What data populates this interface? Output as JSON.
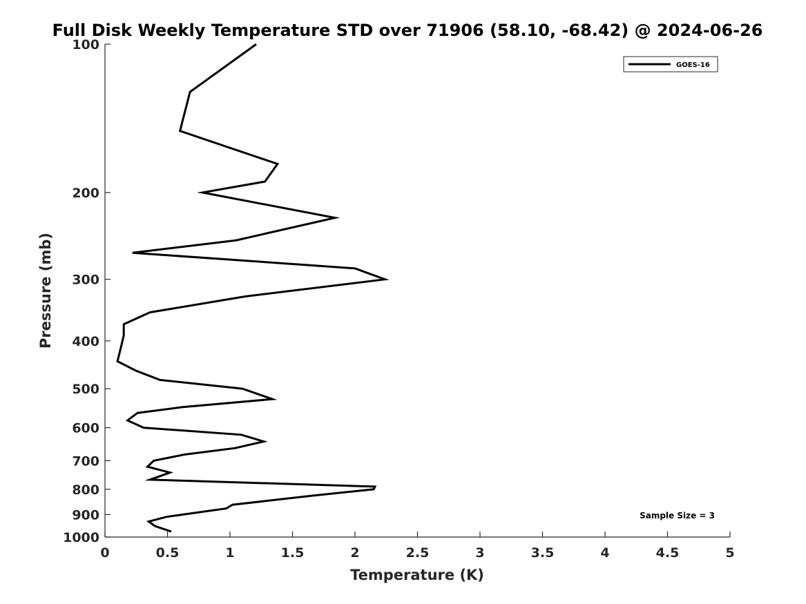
{
  "chart_data": {
    "type": "line",
    "title": "Full Disk Weekly Temperature STD over 71906 (58.10, -68.42) @ 2024-06-26",
    "xlabel": "Temperature (K)",
    "ylabel": "Pressure (mb)",
    "xlim": [
      0,
      5
    ],
    "ylim": [
      100,
      1000
    ],
    "yscale": "log",
    "y_reversed": true,
    "xticks": [
      "0",
      "0.5",
      "1",
      "1.5",
      "2",
      "2.5",
      "3",
      "3.5",
      "4",
      "4.5",
      "5"
    ],
    "yticks": [
      "100",
      "200",
      "300",
      "400",
      "500",
      "600",
      "700",
      "800",
      "900",
      "1000"
    ],
    "grid": false,
    "legend_position": "top-right",
    "series": [
      {
        "name": "GOES-16",
        "color": "#000000",
        "points": [
          [
            1.21,
            100
          ],
          [
            0.68,
            125
          ],
          [
            0.6,
            150
          ],
          [
            1.38,
            175
          ],
          [
            1.28,
            190
          ],
          [
            0.78,
            200
          ],
          [
            1.84,
            225
          ],
          [
            1.05,
            250
          ],
          [
            0.22,
            265
          ],
          [
            2.0,
            285
          ],
          [
            2.24,
            300
          ],
          [
            1.12,
            325
          ],
          [
            0.36,
            350
          ],
          [
            0.15,
            370
          ],
          [
            0.15,
            390
          ],
          [
            0.13,
            410
          ],
          [
            0.1,
            440
          ],
          [
            0.25,
            460
          ],
          [
            0.44,
            480
          ],
          [
            1.1,
            500
          ],
          [
            1.34,
            525
          ],
          [
            0.62,
            545
          ],
          [
            0.26,
            560
          ],
          [
            0.18,
            580
          ],
          [
            0.31,
            600
          ],
          [
            1.09,
            620
          ],
          [
            1.27,
            640
          ],
          [
            1.04,
            660
          ],
          [
            0.64,
            680
          ],
          [
            0.39,
            700
          ],
          [
            0.34,
            720
          ],
          [
            0.52,
            740
          ],
          [
            0.36,
            765
          ],
          [
            2.16,
            790
          ],
          [
            2.15,
            800
          ],
          [
            1.65,
            825
          ],
          [
            1.02,
            860
          ],
          [
            0.97,
            875
          ],
          [
            0.49,
            910
          ],
          [
            0.35,
            930
          ],
          [
            0.4,
            950
          ],
          [
            0.53,
            975
          ]
        ]
      }
    ],
    "annotations": [
      "Sample Size = 3"
    ]
  }
}
